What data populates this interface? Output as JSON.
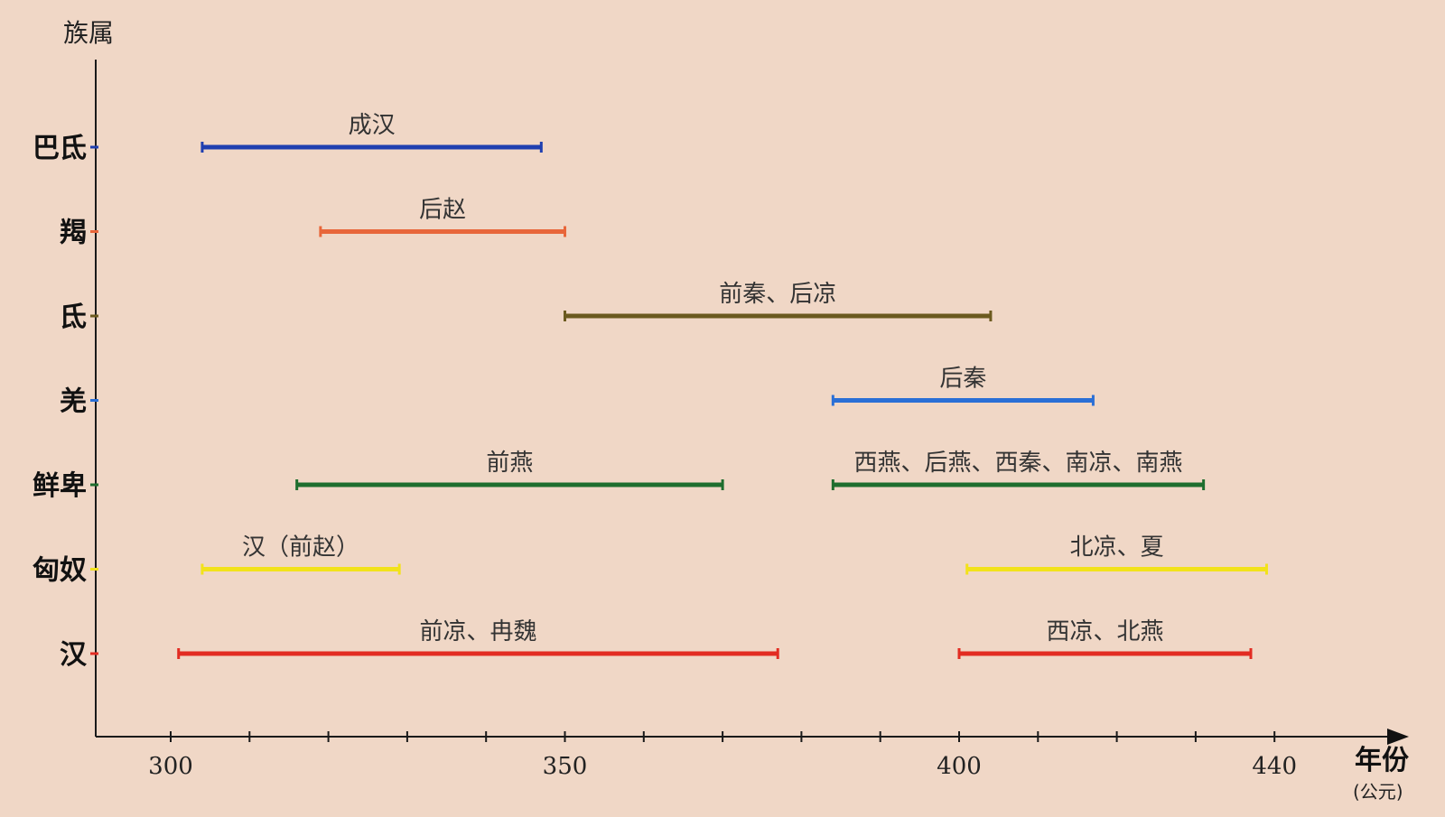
{
  "chart_data": {
    "type": "range-bar",
    "ylabel": "族属",
    "xlabel": "年份",
    "xlabel_sub": "(公元)",
    "xlim": [
      290,
      445
    ],
    "x_tick_labels": [
      {
        "value": 300,
        "label": "300"
      },
      {
        "value": 350,
        "label": "350"
      },
      {
        "value": 400,
        "label": "400"
      },
      {
        "value": 440,
        "label": "440"
      }
    ],
    "x_minor_ticks": [
      300,
      310,
      320,
      330,
      340,
      350,
      360,
      370,
      380,
      390,
      400,
      410,
      420,
      430,
      440
    ],
    "categories": [
      "巴氐",
      "羯",
      "氐",
      "羌",
      "鲜卑",
      "匈奴",
      "汉"
    ],
    "category_colors": [
      "#1f3fb0",
      "#e8663a",
      "#6b5a1f",
      "#2a6fd6",
      "#1e6e2e",
      "#f2e21b",
      "#e22c22"
    ],
    "bars": [
      {
        "category": "巴氐",
        "label": "成汉",
        "start": 304,
        "end": 347,
        "color": "#1f3fb0"
      },
      {
        "category": "羯",
        "label": "后赵",
        "start": 319,
        "end": 350,
        "color": "#e8663a"
      },
      {
        "category": "氐",
        "label": "前秦、后凉",
        "start": 350,
        "end": 404,
        "color": "#6b5a1f"
      },
      {
        "category": "羌",
        "label": "后秦",
        "start": 384,
        "end": 417,
        "color": "#2a6fd6"
      },
      {
        "category": "鲜卑",
        "label": "前燕",
        "start": 316,
        "end": 370,
        "color": "#1e6e2e"
      },
      {
        "category": "鲜卑",
        "label": "西燕、后燕、西秦、南凉、南燕",
        "start": 384,
        "end": 431,
        "color": "#1e6e2e"
      },
      {
        "category": "匈奴",
        "label": "汉（前赵）",
        "start": 304,
        "end": 329,
        "color": "#f2e21b"
      },
      {
        "category": "匈奴",
        "label": "北凉、夏",
        "start": 401,
        "end": 439,
        "color": "#f2e21b"
      },
      {
        "category": "汉",
        "label": "前凉、冉魏",
        "start": 301,
        "end": 377,
        "color": "#e22c22"
      },
      {
        "category": "汉",
        "label": "西凉、北燕",
        "start": 400,
        "end": 437,
        "color": "#e22c22"
      }
    ]
  }
}
